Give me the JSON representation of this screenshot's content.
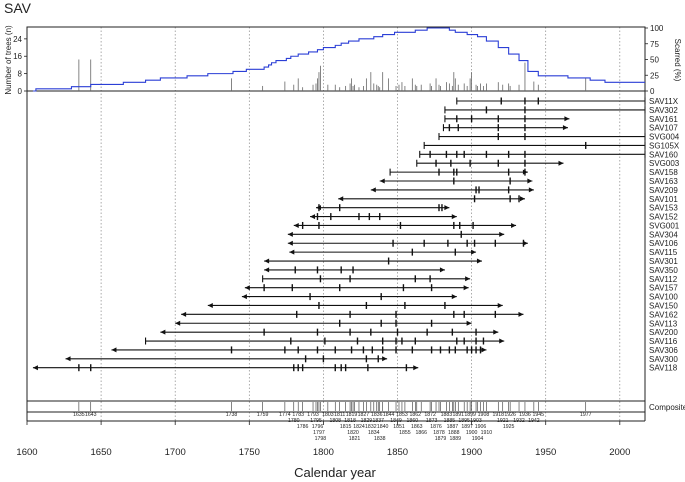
{
  "chart_data": {
    "type": "fire-history",
    "title": "SAV",
    "xlabel": "Calendar year",
    "xlim": [
      1600,
      2017
    ],
    "xticks": [
      1600,
      1650,
      1700,
      1750,
      1800,
      1850,
      1900,
      1950,
      2000
    ],
    "xtick_labels": [
      "1600",
      "1650",
      "1700",
      "1750",
      "1800",
      "1850",
      "1900",
      "1950",
      "2000"
    ],
    "grid_years": [
      1650,
      1700,
      1750,
      1800,
      1850,
      1900,
      1950,
      2000
    ],
    "top_panel": {
      "left_axis_label": "Number of trees (n)",
      "right_axis_label": "Scarred (%)",
      "left_ticks": [
        0,
        8,
        16,
        24
      ],
      "left_tick_labels": [
        "0",
        "8",
        "16",
        "24"
      ],
      "left_max": 29,
      "right_ticks": [
        0,
        25,
        50,
        75,
        100
      ],
      "right_tick_labels": [
        "0",
        "25",
        "50",
        "75",
        "100"
      ],
      "sample_depth_color": "#2b3fd6",
      "sample_depth": [
        [
          1604,
          0
        ],
        [
          1606,
          1
        ],
        [
          1630,
          2
        ],
        [
          1643,
          3
        ],
        [
          1665,
          4
        ],
        [
          1680,
          5
        ],
        [
          1690,
          6
        ],
        [
          1708,
          7
        ],
        [
          1722,
          8
        ],
        [
          1739,
          9
        ],
        [
          1748,
          10
        ],
        [
          1760,
          11
        ],
        [
          1763,
          12
        ],
        [
          1765,
          13
        ],
        [
          1768,
          14
        ],
        [
          1775,
          15
        ],
        [
          1778,
          16
        ],
        [
          1783,
          17
        ],
        [
          1790,
          18
        ],
        [
          1796,
          19
        ],
        [
          1800,
          20
        ],
        [
          1808,
          21
        ],
        [
          1812,
          22
        ],
        [
          1817,
          23
        ],
        [
          1824,
          24
        ],
        [
          1834,
          25
        ],
        [
          1840,
          26
        ],
        [
          1848,
          27
        ],
        [
          1856,
          27
        ],
        [
          1862,
          28
        ],
        [
          1870,
          29
        ],
        [
          1885,
          28
        ],
        [
          1889,
          27
        ],
        [
          1897,
          26
        ],
        [
          1904,
          25
        ],
        [
          1910,
          23
        ],
        [
          1918,
          20
        ],
        [
          1925,
          17
        ],
        [
          1932,
          14
        ],
        [
          1938,
          9
        ],
        [
          1945,
          7
        ],
        [
          1965,
          6
        ],
        [
          1980,
          5
        ],
        [
          1990,
          4
        ],
        [
          2017,
          4
        ]
      ],
      "scar_percent": [
        [
          1635,
          50
        ],
        [
          1643,
          50
        ],
        [
          1738,
          20
        ],
        [
          1759,
          8
        ],
        [
          1774,
          15
        ],
        [
          1780,
          10
        ],
        [
          1783,
          20
        ],
        [
          1786,
          6
        ],
        [
          1793,
          10
        ],
        [
          1795,
          12
        ],
        [
          1796,
          20
        ],
        [
          1797,
          30
        ],
        [
          1798,
          40
        ],
        [
          1803,
          10
        ],
        [
          1808,
          10
        ],
        [
          1811,
          6
        ],
        [
          1815,
          8
        ],
        [
          1818,
          12
        ],
        [
          1819,
          20
        ],
        [
          1820,
          8
        ],
        [
          1821,
          10
        ],
        [
          1824,
          6
        ],
        [
          1827,
          8
        ],
        [
          1829,
          20
        ],
        [
          1832,
          30
        ],
        [
          1834,
          12
        ],
        [
          1836,
          10
        ],
        [
          1837,
          8
        ],
        [
          1838,
          6
        ],
        [
          1840,
          30
        ],
        [
          1844,
          20
        ],
        [
          1849,
          8
        ],
        [
          1851,
          10
        ],
        [
          1853,
          14
        ],
        [
          1855,
          8
        ],
        [
          1860,
          20
        ],
        [
          1862,
          10
        ],
        [
          1863,
          8
        ],
        [
          1866,
          10
        ],
        [
          1872,
          12
        ],
        [
          1873,
          8
        ],
        [
          1876,
          20
        ],
        [
          1878,
          10
        ],
        [
          1879,
          8
        ],
        [
          1883,
          14
        ],
        [
          1885,
          12
        ],
        [
          1887,
          8
        ],
        [
          1888,
          30
        ],
        [
          1889,
          20
        ],
        [
          1891,
          10
        ],
        [
          1895,
          12
        ],
        [
          1897,
          8
        ],
        [
          1899,
          20
        ],
        [
          1900,
          30
        ],
        [
          1903,
          10
        ],
        [
          1904,
          8
        ],
        [
          1906,
          12
        ],
        [
          1908,
          8
        ],
        [
          1910,
          12
        ],
        [
          1918,
          14
        ],
        [
          1921,
          10
        ],
        [
          1925,
          12
        ],
        [
          1926,
          8
        ],
        [
          1932,
          10
        ],
        [
          1936,
          45
        ],
        [
          1942,
          15
        ],
        [
          1945,
          10
        ],
        [
          1977,
          20
        ]
      ]
    },
    "series": [
      {
        "name": "SAV11X",
        "start": 1890,
        "end": 2017,
        "start_cap": "bar",
        "end_cap": "bar",
        "scars": [
          1920,
          1936,
          1945
        ]
      },
      {
        "name": "SAV302",
        "start": 1882,
        "end": 2017,
        "start_cap": "bar",
        "end_cap": "bar",
        "scars": [
          1910,
          1936
        ]
      },
      {
        "name": "SAV161",
        "start": 1882,
        "end": 1966,
        "start_cap": "bar",
        "end_cap": "arrow",
        "scars": [
          1890,
          1900,
          1918,
          1936
        ]
      },
      {
        "name": "SAV107",
        "start": 1881,
        "end": 1965,
        "start_cap": "bar",
        "end_cap": "arrow",
        "scars": [
          1885,
          1891,
          1918,
          1936
        ]
      },
      {
        "name": "SVG004",
        "start": 1878,
        "end": 2017,
        "start_cap": "bar",
        "end_cap": "bar",
        "scars": [
          1918,
          1936
        ]
      },
      {
        "name": "SG105X",
        "start": 1868,
        "end": 2017,
        "start_cap": "bar",
        "end_cap": "bar",
        "scars": [
          1977
        ]
      },
      {
        "name": "SAV160",
        "start": 1865,
        "end": 2017,
        "start_cap": "bar",
        "end_cap": "bar",
        "scars": [
          1872,
          1883,
          1890,
          1895,
          1910,
          1925,
          1936
        ]
      },
      {
        "name": "SVG003",
        "start": 1863,
        "end": 1962,
        "start_cap": "bar",
        "end_cap": "arrow",
        "scars": [
          1876,
          1886,
          1899,
          1918,
          1936
        ]
      },
      {
        "name": "SAV158",
        "start": 1845,
        "end": 1938,
        "start_cap": "bar",
        "end_cap": "arrow",
        "scars": [
          1878,
          1888,
          1890,
          1925,
          1936
        ]
      },
      {
        "name": "SAV163",
        "start": 1838,
        "end": 1941,
        "start_cap": "arrow",
        "end_cap": "arrow",
        "scars": [
          1888,
          1926
        ]
      },
      {
        "name": "SAV209",
        "start": 1832,
        "end": 1942,
        "start_cap": "arrow",
        "end_cap": "arrow",
        "scars": [
          1903,
          1905,
          1925
        ]
      },
      {
        "name": "SAV101",
        "start": 1810,
        "end": 1936,
        "start_cap": "arrow",
        "end_cap": "arrow",
        "scars": [
          1902,
          1926,
          1932
        ]
      },
      {
        "name": "SAV153",
        "start": 1795,
        "end": 1885,
        "start_cap": "arrow",
        "end_cap": "arrow",
        "scars": [
          1797,
          1811,
          1878,
          1880
        ]
      },
      {
        "name": "SAV152",
        "start": 1791,
        "end": 1890,
        "start_cap": "arrow",
        "end_cap": "arrow",
        "scars": [
          1796,
          1805,
          1824,
          1831,
          1838
        ]
      },
      {
        "name": "SVG001",
        "start": 1780,
        "end": 1930,
        "start_cap": "arrow",
        "end_cap": "arrow",
        "scars": [
          1786,
          1797,
          1852,
          1888,
          1892,
          1901
        ]
      },
      {
        "name": "SAV304",
        "start": 1776,
        "end": 1922,
        "start_cap": "arrow",
        "end_cap": "arrow",
        "scars": [
          1893
        ]
      },
      {
        "name": "SAV106",
        "start": 1776,
        "end": 1938,
        "start_cap": "arrow",
        "end_cap": "arrow",
        "scars": [
          1847,
          1868,
          1884,
          1897,
          1902,
          1916,
          1935
        ]
      },
      {
        "name": "SAV115",
        "start": 1777,
        "end": 1903,
        "start_cap": "arrow",
        "end_cap": "arrow",
        "scars": [
          1860,
          1889
        ]
      },
      {
        "name": "SAV301",
        "start": 1760,
        "end": 1907,
        "start_cap": "arrow",
        "end_cap": "arrow",
        "scars": [
          1844
        ]
      },
      {
        "name": "SAV350",
        "start": 1760,
        "end": 1882,
        "start_cap": "arrow",
        "end_cap": "arrow",
        "scars": [
          1781,
          1796,
          1812,
          1820
        ]
      },
      {
        "name": "SAV112",
        "start": 1759,
        "end": 1899,
        "start_cap": "bar",
        "end_cap": "arrow",
        "scars": [
          1798,
          1818,
          1862,
          1872
        ]
      },
      {
        "name": "SAV157",
        "start": 1747,
        "end": 1898,
        "start_cap": "arrow",
        "end_cap": "arrow",
        "scars": [
          1760,
          1779,
          1811,
          1854,
          1873
        ]
      },
      {
        "name": "SAV100",
        "start": 1745,
        "end": 1890,
        "start_cap": "arrow",
        "end_cap": "arrow",
        "scars": [
          1791,
          1839
        ]
      },
      {
        "name": "SAV150",
        "start": 1722,
        "end": 1921,
        "start_cap": "arrow",
        "end_cap": "arrow",
        "scars": [
          1797,
          1829,
          1855,
          1882
        ]
      },
      {
        "name": "SAV162",
        "start": 1704,
        "end": 1935,
        "start_cap": "arrow",
        "end_cap": "arrow",
        "scars": [
          1782,
          1818,
          1849,
          1888,
          1895,
          1916
        ]
      },
      {
        "name": "SAV113",
        "start": 1700,
        "end": 1900,
        "start_cap": "arrow",
        "end_cap": "arrow",
        "scars": [
          1811,
          1839,
          1849,
          1873
        ]
      },
      {
        "name": "SAV200",
        "start": 1690,
        "end": 1918,
        "start_cap": "arrow",
        "end_cap": "arrow",
        "scars": [
          1760,
          1796,
          1818,
          1832,
          1850,
          1870,
          1887,
          1903
        ]
      },
      {
        "name": "SAV116",
        "start": 1680,
        "end": 1922,
        "start_cap": "bar",
        "end_cap": "arrow",
        "scars": [
          1778,
          1801,
          1823,
          1840,
          1849,
          1853,
          1862,
          1890,
          1895,
          1903,
          1908
        ]
      },
      {
        "name": "SAV306",
        "start": 1657,
        "end": 1910,
        "start_cap": "arrow",
        "end_cap": "arrow",
        "scars": [
          1738,
          1774,
          1783,
          1796,
          1808,
          1819,
          1827,
          1833,
          1840,
          1849,
          1860,
          1873,
          1879,
          1885,
          1889,
          1897,
          1900,
          1903,
          1906
        ]
      },
      {
        "name": "SAV300",
        "start": 1626,
        "end": 1843,
        "start_cap": "arrow",
        "end_cap": "arrow",
        "scars": [
          1788,
          1800,
          1829,
          1837
        ]
      },
      {
        "name": "SAV118",
        "start": 1604,
        "end": 1864,
        "start_cap": "arrow",
        "end_cap": "arrow",
        "scars": [
          1635,
          1643,
          1780,
          1783,
          1786,
          1808,
          1812,
          1815,
          1830,
          1856
        ]
      }
    ],
    "composite": {
      "label": "Composite",
      "years": [
        1635,
        1643,
        1738,
        1759,
        1774,
        1780,
        1783,
        1786,
        1793,
        1795,
        1796,
        1797,
        1798,
        1803,
        1808,
        1811,
        1815,
        1818,
        1819,
        1820,
        1821,
        1824,
        1827,
        1829,
        1832,
        1834,
        1836,
        1837,
        1838,
        1840,
        1844,
        1849,
        1851,
        1853,
        1855,
        1860,
        1862,
        1863,
        1866,
        1872,
        1873,
        1876,
        1878,
        1879,
        1883,
        1885,
        1887,
        1888,
        1889,
        1891,
        1895,
        1897,
        1899,
        1900,
        1903,
        1904,
        1906,
        1908,
        1910,
        1918,
        1921,
        1925,
        1926,
        1932,
        1936,
        1942,
        1945,
        1977
      ],
      "year_labels": [
        "1635",
        "1643",
        "1738",
        "1759",
        "1774",
        "1780",
        "1783",
        "1786",
        "1793",
        "1795",
        "1796",
        "1797",
        "1798",
        "1803",
        "1808",
        "1811",
        "1815",
        "1818",
        "1819",
        "1820",
        "1821",
        "1824",
        "1827",
        "1829",
        "1832",
        "1834",
        "1836",
        "1837",
        "1838",
        "1840",
        "1844",
        "1849",
        "1851",
        "1853",
        "1855",
        "1860",
        "1862",
        "1863",
        "1866",
        "1872",
        "1873",
        "1876",
        "1878",
        "1879",
        "1883",
        "1885",
        "1887",
        "1888",
        "1889",
        "1891",
        "1895",
        "1897",
        "1899",
        "1900",
        "1903",
        "1904",
        "1906",
        "1908",
        "1910",
        "1918",
        "1921",
        "1925",
        "1926",
        "1932",
        "1936",
        "1942",
        "1945",
        "1977"
      ]
    }
  }
}
